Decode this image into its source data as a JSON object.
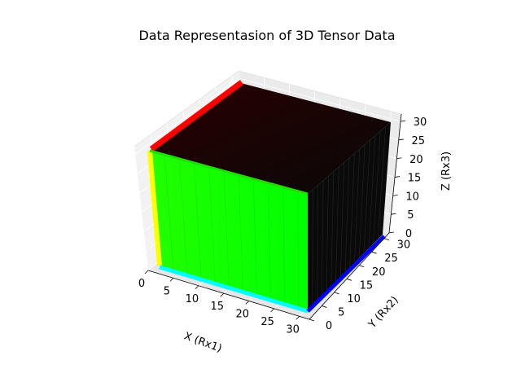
{
  "chart_data": {
    "type": "scatter",
    "projection": "3d",
    "title": "Data Representasion of 3D Tensor Data",
    "xlabel": "X (Rx1)",
    "ylabel": "Y (Rx2)",
    "zlabel": "Z (Rx3)",
    "xlim": [
      0,
      32
    ],
    "ylim": [
      0,
      32
    ],
    "zlim": [
      0,
      32
    ],
    "x_ticks": [
      "0",
      "5",
      "10",
      "15",
      "20",
      "25",
      "30"
    ],
    "y_ticks": [
      "0",
      "5",
      "10",
      "15",
      "20",
      "25",
      "30"
    ],
    "z_ticks": [
      "0",
      "5",
      "10",
      "15",
      "20",
      "25",
      "30"
    ],
    "grid": true,
    "points": {
      "grid_size": 32,
      "x_range": [
        0,
        31
      ],
      "y_range": [
        0,
        31
      ],
      "z_range": [
        0,
        31
      ],
      "color_encoding": "RGB = (x, y, z) / 31 scaled by point index"
    },
    "colors": {
      "x_face": "#00ff00",
      "y_face_edge": "#ffff00",
      "bottom_edge_x": "#00ffff",
      "bottom_edge_y": "#0000ff",
      "top_edge_back": "#ff0000",
      "interior": "#000000"
    }
  }
}
